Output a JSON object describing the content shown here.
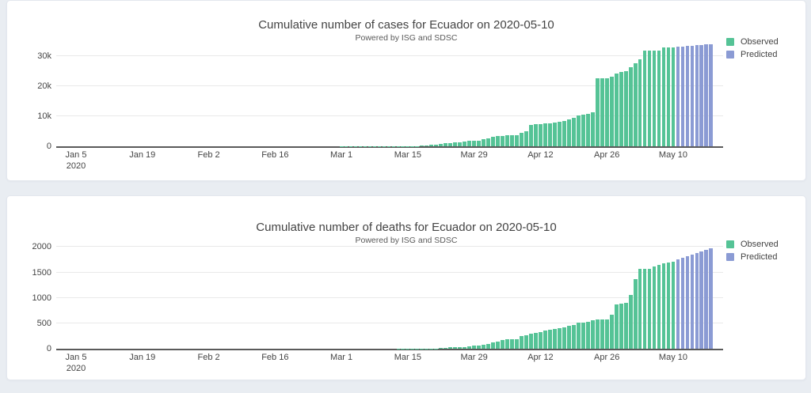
{
  "page": {
    "background": "#e9edf2",
    "card_background": "#ffffff"
  },
  "colors": {
    "observed": "#55c396",
    "predicted": "#8b9bd4",
    "grid": "#e9e9e9",
    "axis_line": "#5a5a5a",
    "text": "#444444"
  },
  "chart_data": [
    {
      "type": "bar",
      "title": "Cumulative number of cases for Ecuador on 2020-05-10",
      "subtitle": "Powered by ISG and SDSC",
      "xlabel": "",
      "ylabel": "",
      "grid": "horizontal-only",
      "legend_position": "top-right-outside",
      "legend": {
        "observed": "Observed",
        "predicted": "Predicted"
      },
      "start_date": "2020-01-05",
      "observed_end_date": "2020-05-10",
      "predicted_end_date": "2020-05-18",
      "ylim": [
        0,
        35200
      ],
      "yticks": [
        {
          "value": 0,
          "label": "0"
        },
        {
          "value": 10000,
          "label": "10k"
        },
        {
          "value": 20000,
          "label": "20k"
        },
        {
          "value": 30000,
          "label": "30k"
        }
      ],
      "xticks": [
        {
          "day": 0,
          "label": "Jan 5",
          "sublabel": "2020"
        },
        {
          "day": 14,
          "label": "Jan 19"
        },
        {
          "day": 28,
          "label": "Feb 2"
        },
        {
          "day": 42,
          "label": "Feb 16"
        },
        {
          "day": 56,
          "label": "Mar 1"
        },
        {
          "day": 70,
          "label": "Mar 15"
        },
        {
          "day": 84,
          "label": "Mar 29"
        },
        {
          "day": 98,
          "label": "Apr 12"
        },
        {
          "day": 112,
          "label": "Apr 26"
        },
        {
          "day": 126,
          "label": "May 10"
        }
      ],
      "observed": {
        "name": "Observed",
        "color_key": "observed",
        "values": [
          0,
          0,
          0,
          0,
          0,
          0,
          0,
          0,
          0,
          0,
          0,
          0,
          0,
          0,
          0,
          0,
          0,
          0,
          0,
          0,
          0,
          0,
          0,
          0,
          0,
          0,
          0,
          0,
          0,
          0,
          0,
          0,
          0,
          0,
          0,
          0,
          0,
          0,
          0,
          0,
          0,
          0,
          0,
          0,
          0,
          0,
          0,
          0,
          0,
          0,
          0,
          0,
          0,
          0,
          0,
          0,
          6,
          6,
          7,
          10,
          13,
          13,
          14,
          14,
          15,
          15,
          17,
          17,
          23,
          28,
          37,
          58,
          111,
          155,
          260,
          426,
          532,
          789,
          981,
          1082,
          1211,
          1403,
          1595,
          1823,
          1924,
          1962,
          2240,
          2748,
          3163,
          3368,
          3465,
          3646,
          3747,
          3747,
          4450,
          4965,
          7161,
          7257,
          7466,
          7529,
          7603,
          7858,
          8225,
          8450,
          9022,
          9468,
          10128,
          10398,
          10850,
          11183,
          22719,
          22719,
          22719,
          23240,
          24258,
          24675,
          24934,
          26336,
          27464,
          28818,
          31881,
          31881,
          31881,
          31881,
          32723,
          32723,
          32763
        ]
      },
      "predicted": {
        "name": "Predicted",
        "color_key": "predicted",
        "values": [
          33050,
          33200,
          33350,
          33480,
          33600,
          33720,
          33820,
          33920
        ]
      }
    },
    {
      "type": "bar",
      "title": "Cumulative number of deaths for Ecuador on 2020-05-10",
      "subtitle": "Powered by ISG and SDSC",
      "xlabel": "",
      "ylabel": "",
      "grid": "horizontal-only",
      "legend_position": "top-right-outside",
      "legend": {
        "observed": "Observed",
        "predicted": "Predicted"
      },
      "start_date": "2020-01-05",
      "observed_end_date": "2020-05-10",
      "predicted_end_date": "2020-05-18",
      "ylim": [
        0,
        2085
      ],
      "yticks": [
        {
          "value": 0,
          "label": "0"
        },
        {
          "value": 500,
          "label": "500"
        },
        {
          "value": 1000,
          "label": "1000"
        },
        {
          "value": 1500,
          "label": "1500"
        },
        {
          "value": 2000,
          "label": "2000"
        }
      ],
      "xticks": [
        {
          "day": 0,
          "label": "Jan 5",
          "sublabel": "2020"
        },
        {
          "day": 14,
          "label": "Jan 19"
        },
        {
          "day": 28,
          "label": "Feb 2"
        },
        {
          "day": 42,
          "label": "Feb 16"
        },
        {
          "day": 56,
          "label": "Mar 1"
        },
        {
          "day": 70,
          "label": "Mar 15"
        },
        {
          "day": 84,
          "label": "Mar 29"
        },
        {
          "day": 98,
          "label": "Apr 12"
        },
        {
          "day": 112,
          "label": "Apr 26"
        },
        {
          "day": 126,
          "label": "May 10"
        }
      ],
      "observed": {
        "name": "Observed",
        "color_key": "observed",
        "values": [
          0,
          0,
          0,
          0,
          0,
          0,
          0,
          0,
          0,
          0,
          0,
          0,
          0,
          0,
          0,
          0,
          0,
          0,
          0,
          0,
          0,
          0,
          0,
          0,
          0,
          0,
          0,
          0,
          0,
          0,
          0,
          0,
          0,
          0,
          0,
          0,
          0,
          0,
          0,
          0,
          0,
          0,
          0,
          0,
          0,
          0,
          0,
          0,
          0,
          0,
          0,
          0,
          0,
          0,
          0,
          0,
          0,
          0,
          0,
          0,
          0,
          0,
          0,
          0,
          0,
          0,
          0,
          0,
          2,
          2,
          2,
          2,
          2,
          3,
          4,
          7,
          7,
          14,
          18,
          27,
          29,
          34,
          36,
          48,
          58,
          60,
          75,
          93,
          120,
          145,
          172,
          180,
          191,
          191,
          242,
          272,
          297,
          315,
          333,
          355,
          369,
          388,
          403,
          421,
          456,
          474,
          507,
          520,
          537,
          560,
          576,
          576,
          576,
          663,
          871,
          883,
          900,
          1063,
          1371,
          1569,
          1569,
          1569,
          1618,
          1654,
          1674,
          1704,
          1717
        ]
      },
      "predicted": {
        "name": "Predicted",
        "color_key": "predicted",
        "values": [
          1760,
          1795,
          1825,
          1855,
          1885,
          1915,
          1945,
          1975
        ]
      }
    }
  ]
}
